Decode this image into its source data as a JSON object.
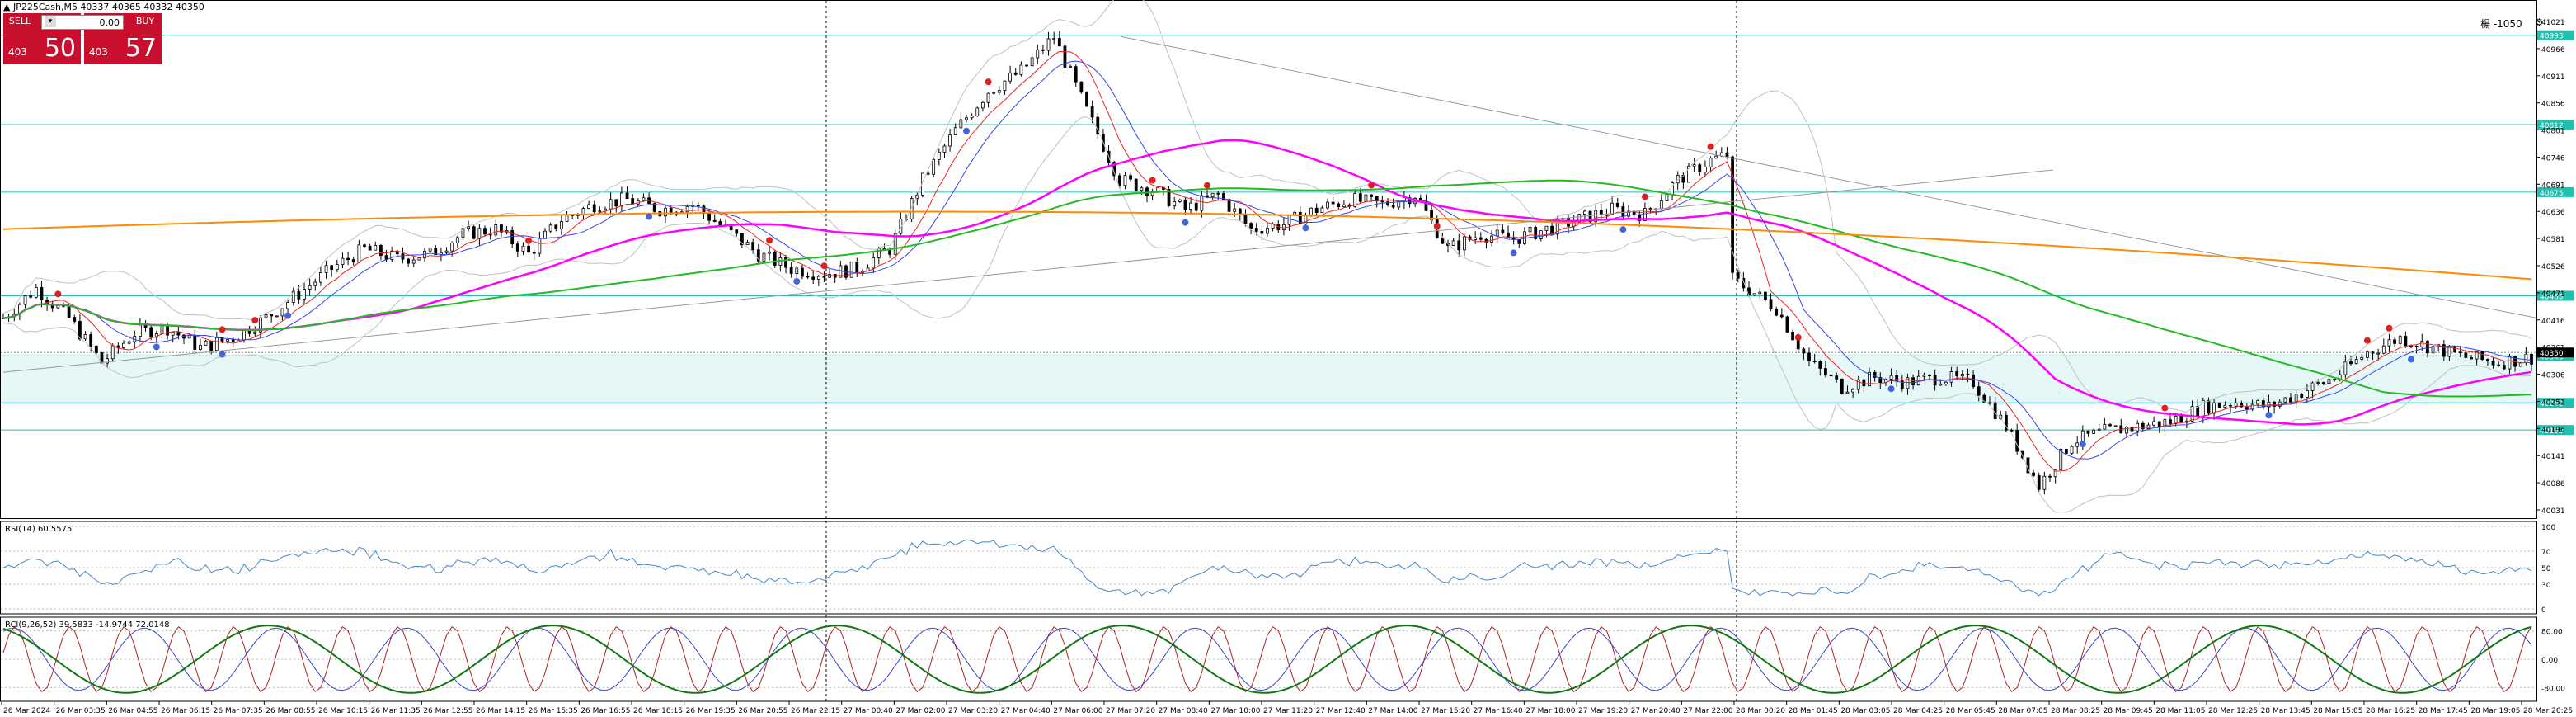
{
  "header": {
    "symbol_line": "▲ JP225Cash,M5  40337 40365 40332 40350",
    "corner_text": "楊 -1050",
    "corner_icon": "gear-icon"
  },
  "trade_panel": {
    "sell_label": "SELL",
    "buy_label": "BUY",
    "lot_value": "0.00",
    "sell_small": "403",
    "sell_big": "50",
    "buy_small": "403",
    "buy_big": "57",
    "color": "#c8102e"
  },
  "colors": {
    "candles": "#000000",
    "ma_magenta": "#ff00ff",
    "ma_orange": "#ff8c00",
    "ma_green": "#22bb22",
    "ma_blue": "#3344ee",
    "ma_red": "#ee2222",
    "bollinger": "#c0c0c0",
    "levels": "#20c0b0",
    "rsi": "#4488cc",
    "rci_short": "#aa2222",
    "rci_mid": "#3344cc",
    "rci_long": "#117711"
  },
  "chart_data": [
    {
      "type": "line",
      "title": "JP225Cash,M5",
      "price_axis_labels": [
        "41021",
        "40966",
        "40911",
        "40856",
        "40801",
        "40746",
        "40691",
        "40636",
        "40581",
        "40526",
        "40471",
        "40416",
        "40361",
        "40306",
        "40251",
        "40196",
        "40141",
        "40086",
        "40031"
      ],
      "highlighted_levels": [
        "40993",
        "40812",
        "40675",
        "40465",
        "40343",
        "40248",
        "40193"
      ],
      "current_price": "40350",
      "ylim": [
        40031,
        41021
      ],
      "time_labels": [
        "26 Mar 2024",
        "26 Mar 03:35",
        "26 Mar 04:55",
        "26 Mar 06:15",
        "26 Mar 07:35",
        "26 Mar 08:55",
        "26 Mar 10:15",
        "26 Mar 11:35",
        "26 Mar 12:55",
        "26 Mar 14:15",
        "26 Mar 15:35",
        "26 Mar 16:55",
        "26 Mar 18:15",
        "26 Mar 19:35",
        "26 Mar 20:55",
        "26 Mar 22:15",
        "27 Mar 00:40",
        "27 Mar 02:00",
        "27 Mar 03:20",
        "27 Mar 04:40",
        "27 Mar 06:00",
        "27 Mar 07:20",
        "27 Mar 08:40",
        "27 Mar 10:00",
        "27 Mar 11:20",
        "27 Mar 12:40",
        "27 Mar 14:00",
        "27 Mar 15:20",
        "27 Mar 16:40",
        "27 Mar 18:00",
        "27 Mar 19:20",
        "27 Mar 20:40",
        "27 Mar 22:00",
        "28 Mar 00:20",
        "28 Mar 01:45",
        "28 Mar 03:05",
        "28 Mar 04:25",
        "28 Mar 05:45",
        "28 Mar 07:05",
        "28 Mar 08:25",
        "28 Mar 09:45",
        "28 Mar 11:05",
        "28 Mar 12:25",
        "28 Mar 13:45",
        "28 Mar 15:05",
        "28 Mar 16:25",
        "28 Mar 17:45",
        "28 Mar 19:05",
        "28 Mar 20:25"
      ],
      "price_path": [
        [
          0,
          40420
        ],
        [
          6,
          40480
        ],
        [
          12,
          40420
        ],
        [
          18,
          40330
        ],
        [
          24,
          40390
        ],
        [
          30,
          40400
        ],
        [
          36,
          40360
        ],
        [
          42,
          40380
        ],
        [
          48,
          40420
        ],
        [
          54,
          40470
        ],
        [
          60,
          40520
        ],
        [
          66,
          40560
        ],
        [
          72,
          40540
        ],
        [
          78,
          40550
        ],
        [
          84,
          40590
        ],
        [
          90,
          40600
        ],
        [
          96,
          40550
        ],
        [
          102,
          40620
        ],
        [
          108,
          40650
        ],
        [
          114,
          40660
        ],
        [
          120,
          40640
        ],
        [
          126,
          40650
        ],
        [
          132,
          40600
        ],
        [
          138,
          40550
        ],
        [
          144,
          40520
        ],
        [
          150,
          40510
        ],
        [
          156,
          40520
        ],
        [
          162,
          40560
        ],
        [
          168,
          40700
        ],
        [
          174,
          40800
        ],
        [
          180,
          40880
        ],
        [
          186,
          40920
        ],
        [
          192,
          40990
        ],
        [
          198,
          40840
        ],
        [
          204,
          40700
        ],
        [
          210,
          40680
        ],
        [
          216,
          40640
        ],
        [
          222,
          40670
        ],
        [
          228,
          40600
        ],
        [
          234,
          40610
        ],
        [
          240,
          40640
        ],
        [
          246,
          40660
        ],
        [
          252,
          40650
        ],
        [
          258,
          40670
        ],
        [
          264,
          40560
        ],
        [
          270,
          40590
        ],
        [
          276,
          40580
        ],
        [
          282,
          40600
        ],
        [
          288,
          40620
        ],
        [
          294,
          40640
        ],
        [
          300,
          40630
        ],
        [
          306,
          40700
        ],
        [
          312,
          40740
        ],
        [
          315,
          40750
        ],
        [
          316,
          40500
        ],
        [
          324,
          40440
        ],
        [
          330,
          40330
        ],
        [
          336,
          40280
        ],
        [
          342,
          40300
        ],
        [
          348,
          40290
        ],
        [
          354,
          40300
        ],
        [
          360,
          40290
        ],
        [
          366,
          40200
        ],
        [
          372,
          40080
        ],
        [
          378,
          40170
        ],
        [
          384,
          40190
        ],
        [
          390,
          40200
        ],
        [
          396,
          40210
        ],
        [
          402,
          40240
        ],
        [
          408,
          40250
        ],
        [
          414,
          40240
        ],
        [
          420,
          40270
        ],
        [
          426,
          40300
        ],
        [
          432,
          40350
        ],
        [
          438,
          40380
        ],
        [
          444,
          40360
        ],
        [
          450,
          40340
        ],
        [
          456,
          40330
        ],
        [
          462,
          40340
        ]
      ],
      "rsi": {
        "label": "RSI(14) 60.5575",
        "levels": [
          100,
          70,
          50,
          30,
          0
        ],
        "current": 60.5575
      },
      "rci": {
        "label": "RCI(9,26,52) 39.5833 -14.9744 72.0148",
        "levels": [
          80,
          0,
          -80
        ],
        "values": [
          39.5833,
          -14.9744,
          72.0148
        ]
      }
    }
  ]
}
